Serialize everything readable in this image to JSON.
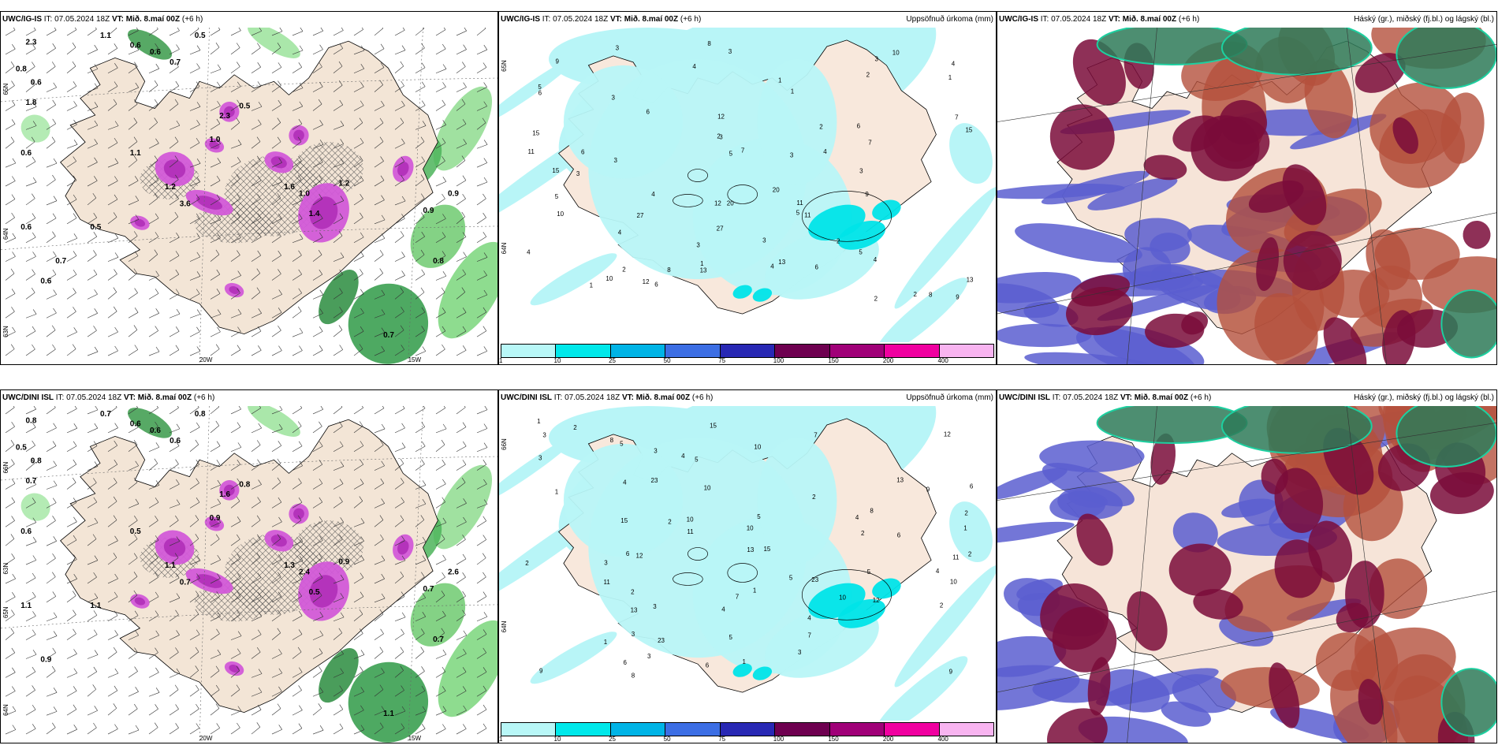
{
  "panels": [
    {
      "model": "UWC/IG-IS",
      "it": "IT: 07.05.2024 18Z",
      "vt_label": "VT:",
      "vt": "Mið. 8.maí 00Z",
      "lead": "(+6 h)",
      "right": "",
      "axis": [
        "20W",
        "15W",
        "65N",
        "64N",
        "63N"
      ],
      "values": [
        "2.3",
        "1.1",
        "0.6",
        "0.6",
        "0.7",
        "0.5",
        "0.8",
        "0.6",
        "1.8",
        "0.6",
        "0.6",
        "0.6",
        "0.7",
        "0.5",
        "1.4",
        "1.0",
        "2.3",
        "1.0",
        "1.6",
        "3.6",
        "1.2",
        "0.9",
        "0.8",
        "0.5",
        "0.9",
        "1.2",
        "1.1",
        "0.7"
      ]
    },
    {
      "model": "UWC/IG-IS",
      "it": "IT: 07.05.2024 18Z",
      "vt_label": "VT:",
      "vt": "Mið. 8.maí 00Z",
      "lead": "(+6 h)",
      "right": "Uppsöfnuð úrkoma (mm)",
      "axis": [
        "65N",
        "64N"
      ],
      "values": [
        "11",
        "3",
        "6",
        "4",
        "5",
        "2",
        "3",
        "1",
        "12",
        "10",
        "7",
        "9",
        "8",
        "6",
        "3",
        "4",
        "13",
        "15",
        "20",
        "27",
        "2",
        "4",
        "1",
        "3",
        "2",
        "5"
      ]
    },
    {
      "model": "UWC/IG-IS",
      "it": "IT: 07.05.2024 18Z",
      "vt_label": "VT:",
      "vt": "Mið. 8.maí 00Z",
      "lead": "(+6 h)",
      "right": "Háský (gr.), miðský (fj.bl.) og lágský (bl.)",
      "axis": []
    },
    {
      "model": "UWC/DINI ISL",
      "it": "IT: 07.05.2024 18Z",
      "vt_label": "VT:",
      "vt": "Mið. 8.maí 00Z",
      "lead": "(+6 h)",
      "right": "",
      "axis": [
        "20W",
        "15W",
        "66N",
        "65N",
        "64N",
        "63N"
      ],
      "values": [
        "0.8",
        "0.7",
        "0.6",
        "0.6",
        "0.6",
        "0.8",
        "0.5",
        "0.8",
        "0.7",
        "0.6",
        "1.1",
        "0.9",
        "1.1",
        "0.8",
        "0.5",
        "2.4",
        "1.6",
        "0.9",
        "1.3",
        "0.7",
        "0.9",
        "0.7",
        "0.7",
        "1.1",
        "2.6",
        "1.1",
        "0.5"
      ]
    },
    {
      "model": "UWC/DINI ISL",
      "it": "IT: 07.05.2024 18Z",
      "vt_label": "VT:",
      "vt": "Mið. 8.maí 00Z",
      "lead": "(+6 h)",
      "right": "Uppsöfnuð úrkoma (mm)",
      "axis": [
        "66N",
        "64N"
      ],
      "values": [
        "3",
        "1",
        "2",
        "12",
        "6",
        "4",
        "5",
        "3",
        "9",
        "10",
        "13",
        "15",
        "8",
        "11",
        "7",
        "2",
        "4",
        "1",
        "23",
        "10",
        "2",
        "5",
        "3",
        "6"
      ]
    },
    {
      "model": "UWC/DINI ISL",
      "it": "IT: 07.05.2024 18Z",
      "vt_label": "VT:",
      "vt": "Mið. 8.maí 00Z",
      "lead": "(+6 h)",
      "right": "Háský (gr.), miðský (fj.bl.) og lágský (bl.)",
      "axis": []
    }
  ],
  "colorbar": {
    "ticks": [
      "1",
      "10",
      "25",
      "50",
      "75",
      "100",
      "150",
      "200",
      "400"
    ],
    "colors": [
      "#b8f7f7",
      "#00e8ea",
      "#00b4e6",
      "#3c6ee4",
      "#2828b4",
      "#6e0050",
      "#a00078",
      "#f000a0",
      "#f8b4f0"
    ]
  }
}
